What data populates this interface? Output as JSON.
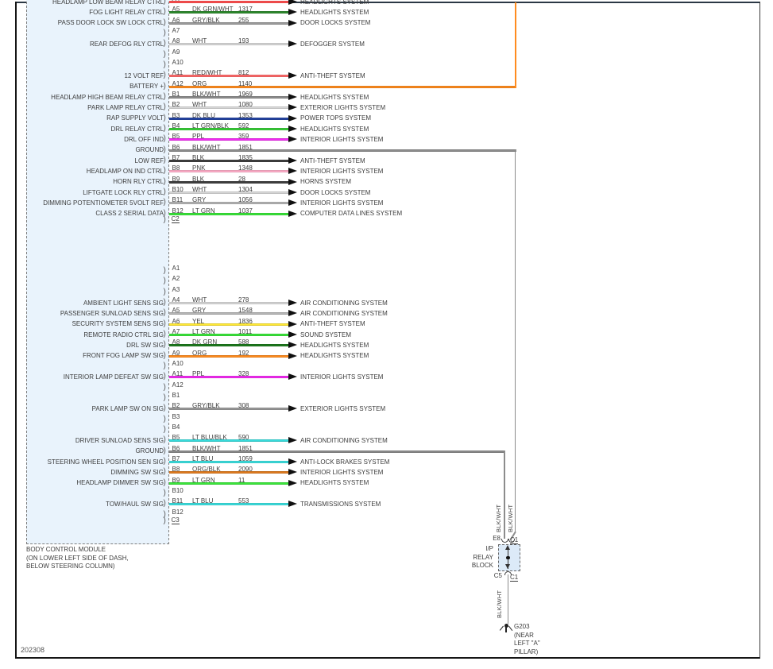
{
  "footer": {
    "code": "202308"
  },
  "module": {
    "name": "BODY CONTROL MODULE",
    "location_lines": [
      "(ON LOWER LEFT SIDE OF DASH,",
      "BELOW STEERING COLUMN)"
    ]
  },
  "connectors": [
    {
      "id": "C2",
      "label": "C2",
      "pins": [
        {
          "pin": "A4",
          "label": "HEADLAMP LOW BEAM RELAY CTRL",
          "color": "",
          "circuit": "",
          "hex": "#ff5050",
          "system": "HEADLIGHTS SYSTEM"
        },
        {
          "pin": "A5",
          "label": "FOG LIGHT RELAY CTRL",
          "color": "DK GRN/WHT",
          "circuit": "1317",
          "hex": "#2d8a2d",
          "system": "HEADLIGHTS SYSTEM"
        },
        {
          "pin": "A6",
          "label": "PASS DOOR LOCK SW LOCK CTRL",
          "color": "GRY/BLK",
          "circuit": "255",
          "hex": "#9a9a9a",
          "system": "DOOR LOCKS SYSTEM"
        },
        {
          "pin": "A7"
        },
        {
          "pin": "A8",
          "label": "REAR DEFOG RLY CTRL",
          "color": "WHT",
          "circuit": "193",
          "hex": "#d9d9d9",
          "system": "DEFOGGER SYSTEM"
        },
        {
          "pin": "A9"
        },
        {
          "pin": "A10"
        },
        {
          "pin": "A11",
          "label": "12 VOLT REF",
          "color": "RED/WHT",
          "circuit": "812",
          "hex": "#ff6a6a",
          "system": "ANTI-THEFT SYSTEM"
        },
        {
          "pin": "A12",
          "label": "BATTERY +",
          "color": "ORG",
          "circuit": "1140",
          "hex": "#ff8c1f",
          "route": "battery"
        },
        {
          "pin": "B1",
          "label": "HEADLAMP HIGH BEAM RELAY CTRL",
          "color": "BLK/WHT",
          "circuit": "1969",
          "hex": "#8c8c8c",
          "system": "HEADLIGHTS SYSTEM"
        },
        {
          "pin": "B2",
          "label": "PARK LAMP RELAY CTRL",
          "color": "WHT",
          "circuit": "1080",
          "hex": "#d9d9d9",
          "system": "EXTERIOR LIGHTS SYSTEM"
        },
        {
          "pin": "B3",
          "label": "RAP SUPPLY VOLT",
          "color": "DK BLU",
          "circuit": "1353",
          "hex": "#2444a2",
          "system": "POWER TOPS SYSTEM"
        },
        {
          "pin": "B4",
          "label": "DRL RELAY CTRL",
          "color": "LT GRN/BLK",
          "circuit": "592",
          "hex": "#38cc38",
          "system": "HEADLIGHTS SYSTEM"
        },
        {
          "pin": "B5",
          "label": "DRL OFF IND",
          "color": "PPL",
          "circuit": "359",
          "hex": "#f32bf3",
          "system": "INTERIOR LIGHTS SYSTEM"
        },
        {
          "pin": "B6",
          "label": "GROUND",
          "color": "BLK/WHT",
          "circuit": "1851",
          "hex": "#8c8c8c",
          "route": "ground-right"
        },
        {
          "pin": "B7",
          "label": "LOW REF",
          "color": "BLK",
          "circuit": "1835",
          "hex": "#404040",
          "system": "ANTI-THEFT SYSTEM"
        },
        {
          "pin": "B8",
          "label": "HEADLAMP ON IND CTRL",
          "color": "PNK",
          "circuit": "1348",
          "hex": "#ffaec9",
          "system": "INTERIOR LIGHTS SYSTEM"
        },
        {
          "pin": "B9",
          "label": "HORN RLY CTRL",
          "color": "BLK",
          "circuit": "28",
          "hex": "#404040",
          "system": "HORNS SYSTEM"
        },
        {
          "pin": "B10",
          "label": "LIFTGATE LOCK RLY CTRL",
          "color": "WHT",
          "circuit": "1304",
          "hex": "#d9d9d9",
          "system": "DOOR LOCKS SYSTEM"
        },
        {
          "pin": "B11",
          "label": "DIMMING POTENTIOMETER 5VOLT REF",
          "color": "GRY",
          "circuit": "1056",
          "hex": "#b5b5b5",
          "system": "INTERIOR LIGHTS SYSTEM"
        },
        {
          "pin": "B12",
          "label": "CLASS 2 SERIAL DATA",
          "color": "LT GRN",
          "circuit": "1037",
          "hex": "#3ae63a",
          "system": "COMPUTER DATA LINES SYSTEM"
        }
      ]
    },
    {
      "id": "C3",
      "label": "C3",
      "pins": [
        {
          "pin": "A1"
        },
        {
          "pin": "A2"
        },
        {
          "pin": "A3"
        },
        {
          "pin": "A4",
          "label": "AMBIENT LIGHT SENS SIG",
          "color": "WHT",
          "circuit": "278",
          "hex": "#d9d9d9",
          "system": "AIR CONDITIONING SYSTEM"
        },
        {
          "pin": "A5",
          "label": "PASSENGER SUNLOAD SENS SIG",
          "color": "GRY",
          "circuit": "1548",
          "hex": "#b5b5b5",
          "system": "AIR CONDITIONING SYSTEM"
        },
        {
          "pin": "A6",
          "label": "SECURITY SYSTEM SENS SIG",
          "color": "YEL",
          "circuit": "1836",
          "hex": "#ffe937",
          "system": "ANTI-THEFT SYSTEM"
        },
        {
          "pin": "A7",
          "label": "REMOTE RADIO CTRL SIG",
          "color": "LT GRN",
          "circuit": "1011",
          "hex": "#3ae63a",
          "system": "SOUND SYSTEM"
        },
        {
          "pin": "A8",
          "label": "DRL SW SIG",
          "color": "DK GRN",
          "circuit": "588",
          "hex": "#1d7a1d",
          "system": "HEADLIGHTS SYSTEM"
        },
        {
          "pin": "A9",
          "label": "FRONT FOG LAMP SW SIG",
          "color": "ORG",
          "circuit": "192",
          "hex": "#ff8c1f",
          "system": "HEADLIGHTS SYSTEM"
        },
        {
          "pin": "A10"
        },
        {
          "pin": "A11",
          "label": "INTERIOR LAMP DEFEAT SW SIG",
          "color": "PPL",
          "circuit": "328",
          "hex": "#f32bf3",
          "system": "INTERIOR LIGHTS SYSTEM"
        },
        {
          "pin": "A12"
        },
        {
          "pin": "B1"
        },
        {
          "pin": "B2",
          "label": "PARK LAMP SW ON SIG",
          "color": "GRY/BLK",
          "circuit": "308",
          "hex": "#9a9a9a",
          "system": "EXTERIOR LIGHTS SYSTEM"
        },
        {
          "pin": "B3"
        },
        {
          "pin": "B4"
        },
        {
          "pin": "B5",
          "label": "DRIVER SUNLOAD SENS SIG",
          "color": "LT BLU/BLK",
          "circuit": "590",
          "hex": "#39dcdc",
          "system": "AIR CONDITIONING SYSTEM"
        },
        {
          "pin": "B6",
          "label": "GROUND",
          "color": "BLK/WHT",
          "circuit": "1851",
          "hex": "#8c8c8c",
          "route": "ground-left"
        },
        {
          "pin": "B7",
          "label": "STEERING WHEEL POSITION SEN SIG",
          "color": "LT BLU",
          "circuit": "1059",
          "hex": "#3ce0e0",
          "system": "ANTI-LOCK BRAKES SYSTEM"
        },
        {
          "pin": "B8",
          "label": "DIMMING SW SIG",
          "color": "ORG/BLK",
          "circuit": "2090",
          "hex": "#e07c20",
          "system": "INTERIOR LIGHTS SYSTEM"
        },
        {
          "pin": "B9",
          "label": "HEADLAMP DIMMER SW SIG",
          "color": "LT GRN",
          "circuit": "11",
          "hex": "#3ae63a",
          "system": "HEADLIGHTS SYSTEM"
        },
        {
          "pin": "B10"
        },
        {
          "pin": "B11",
          "label": "TOW/HAUL SW SIG",
          "color": "LT BLU",
          "circuit": "553",
          "hex": "#3ce0e0",
          "system": "TRANSMISSIONS SYSTEM"
        },
        {
          "pin": "B12"
        }
      ]
    }
  ],
  "ip_relay_block": {
    "name_lines": [
      "I/P",
      "RELAY",
      "BLOCK"
    ],
    "top_left_terminal": "E8",
    "top_right_connector": "C1",
    "bottom_left_terminal": "C5",
    "bottom_right_connector": "C1",
    "vertical_wire_labels": [
      "BLK/WHT",
      "BLK/WHT"
    ],
    "ground_wire_label": "BLK/WHT"
  },
  "ground": {
    "id": "G203",
    "location_lines": [
      "(NEAR",
      "LEFT \"A\"",
      "PILLAR)"
    ]
  },
  "route_colors": {
    "battery_hex": "#ff8c1f",
    "ground_hex": "#8c8c8c"
  }
}
